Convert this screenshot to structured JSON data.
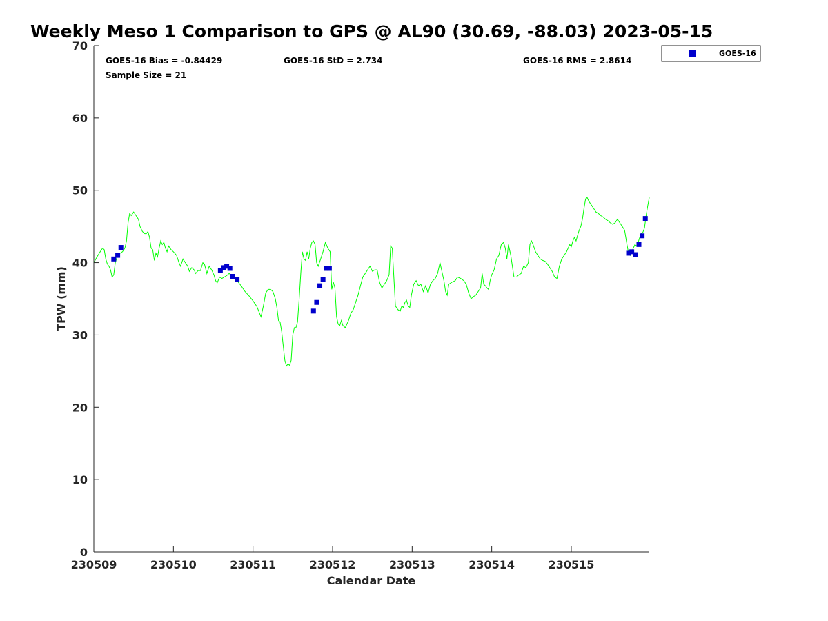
{
  "chart_data": {
    "type": "scatter",
    "title": "Weekly Meso 1 Comparison to GPS @ AL90 (30.69, -88.03) 2023-05-15",
    "xlabel": "Calendar Date",
    "ylabel": "TPW (mm)",
    "ylim": [
      0,
      70
    ],
    "xlim": [
      0,
      6.98
    ],
    "x_unit_note": "days after 230509 00Z",
    "y_ticks": [
      0,
      10,
      20,
      30,
      40,
      50,
      60,
      70
    ],
    "x_ticks": [
      {
        "value": 0,
        "label": "230509"
      },
      {
        "value": 1,
        "label": "230510"
      },
      {
        "value": 2,
        "label": "230511"
      },
      {
        "value": 3,
        "label": "230512"
      },
      {
        "value": 4,
        "label": "230513"
      },
      {
        "value": 5,
        "label": "230514"
      },
      {
        "value": 6,
        "label": "230515"
      }
    ],
    "grid": false,
    "legend_position": "top-right-outside",
    "stats": {
      "bias": "GOES-16 Bias = -0.84429",
      "std": "GOES-16 StD = 2.734",
      "rms": "GOES-16 RMS = 2.8614",
      "sample": "Sample Size = 21"
    },
    "series": [
      {
        "name": "GPS",
        "kind": "line",
        "color": "#00ff00",
        "points": [
          [
            0.0,
            40.0
          ],
          [
            0.04,
            40.8
          ],
          [
            0.08,
            41.5
          ],
          [
            0.11,
            42.0
          ],
          [
            0.13,
            41.8
          ],
          [
            0.15,
            40.5
          ],
          [
            0.17,
            39.8
          ],
          [
            0.19,
            39.5
          ],
          [
            0.21,
            39.0
          ],
          [
            0.23,
            38.0
          ],
          [
            0.25,
            38.3
          ],
          [
            0.27,
            40.0
          ],
          [
            0.3,
            41.0
          ],
          [
            0.33,
            41.3
          ],
          [
            0.36,
            41.5
          ],
          [
            0.39,
            42.0
          ],
          [
            0.41,
            43.0
          ],
          [
            0.43,
            45.5
          ],
          [
            0.45,
            46.8
          ],
          [
            0.47,
            46.5
          ],
          [
            0.5,
            47.0
          ],
          [
            0.53,
            46.5
          ],
          [
            0.56,
            46.0
          ],
          [
            0.58,
            45.0
          ],
          [
            0.61,
            44.3
          ],
          [
            0.64,
            44.0
          ],
          [
            0.66,
            44.0
          ],
          [
            0.68,
            44.3
          ],
          [
            0.7,
            43.5
          ],
          [
            0.72,
            42.0
          ],
          [
            0.74,
            41.8
          ],
          [
            0.76,
            40.3
          ],
          [
            0.78,
            41.3
          ],
          [
            0.8,
            40.8
          ],
          [
            0.82,
            42.0
          ],
          [
            0.84,
            43.0
          ],
          [
            0.86,
            42.5
          ],
          [
            0.88,
            42.8
          ],
          [
            0.9,
            42.0
          ],
          [
            0.92,
            41.5
          ],
          [
            0.94,
            42.3
          ],
          [
            0.97,
            41.8
          ],
          [
            1.0,
            41.5
          ],
          [
            1.04,
            41.0
          ],
          [
            1.07,
            40.0
          ],
          [
            1.09,
            39.5
          ],
          [
            1.12,
            40.5
          ],
          [
            1.15,
            40.0
          ],
          [
            1.18,
            39.5
          ],
          [
            1.2,
            38.8
          ],
          [
            1.23,
            39.3
          ],
          [
            1.26,
            39.0
          ],
          [
            1.28,
            38.5
          ],
          [
            1.31,
            38.9
          ],
          [
            1.34,
            38.9
          ],
          [
            1.37,
            40.0
          ],
          [
            1.39,
            39.8
          ],
          [
            1.42,
            38.5
          ],
          [
            1.45,
            39.5
          ],
          [
            1.48,
            39.0
          ],
          [
            1.51,
            38.3
          ],
          [
            1.53,
            37.5
          ],
          [
            1.55,
            37.2
          ],
          [
            1.58,
            38.0
          ],
          [
            1.61,
            37.8
          ],
          [
            1.64,
            38.0
          ],
          [
            1.67,
            38.2
          ],
          [
            1.7,
            38.5
          ],
          [
            1.75,
            38.0
          ],
          [
            1.8,
            37.5
          ],
          [
            1.85,
            36.8
          ],
          [
            1.9,
            36.0
          ],
          [
            1.95,
            35.4
          ],
          [
            2.0,
            34.7
          ],
          [
            2.05,
            33.9
          ],
          [
            2.1,
            32.5
          ],
          [
            2.13,
            34.0
          ],
          [
            2.16,
            35.8
          ],
          [
            2.19,
            36.3
          ],
          [
            2.22,
            36.3
          ],
          [
            2.25,
            36.0
          ],
          [
            2.28,
            35.0
          ],
          [
            2.3,
            33.8
          ],
          [
            2.32,
            32.0
          ],
          [
            2.34,
            31.8
          ],
          [
            2.36,
            30.5
          ],
          [
            2.38,
            28.5
          ],
          [
            2.4,
            26.5
          ],
          [
            2.42,
            25.7
          ],
          [
            2.44,
            26.0
          ],
          [
            2.46,
            25.8
          ],
          [
            2.48,
            26.5
          ],
          [
            2.5,
            30.0
          ],
          [
            2.52,
            31.0
          ],
          [
            2.54,
            31.0
          ],
          [
            2.56,
            31.8
          ],
          [
            2.58,
            35.0
          ],
          [
            2.6,
            38.5
          ],
          [
            2.62,
            41.5
          ],
          [
            2.64,
            40.5
          ],
          [
            2.66,
            40.3
          ],
          [
            2.68,
            41.5
          ],
          [
            2.7,
            40.5
          ],
          [
            2.72,
            42.0
          ],
          [
            2.74,
            42.8
          ],
          [
            2.76,
            43.0
          ],
          [
            2.78,
            42.5
          ],
          [
            2.8,
            40.0
          ],
          [
            2.82,
            39.5
          ],
          [
            2.85,
            40.5
          ],
          [
            2.88,
            41.5
          ],
          [
            2.91,
            42.8
          ],
          [
            2.94,
            42.0
          ],
          [
            2.97,
            41.5
          ],
          [
            2.99,
            36.3
          ],
          [
            3.01,
            37.3
          ],
          [
            3.03,
            36.5
          ],
          [
            3.05,
            32.5
          ],
          [
            3.07,
            31.5
          ],
          [
            3.09,
            31.3
          ],
          [
            3.11,
            32.0
          ],
          [
            3.13,
            31.3
          ],
          [
            3.16,
            31.0
          ],
          [
            3.2,
            32.0
          ],
          [
            3.23,
            33.0
          ],
          [
            3.26,
            33.5
          ],
          [
            3.29,
            34.5
          ],
          [
            3.32,
            35.5
          ],
          [
            3.35,
            36.8
          ],
          [
            3.38,
            38.0
          ],
          [
            3.41,
            38.5
          ],
          [
            3.44,
            39.0
          ],
          [
            3.47,
            39.5
          ],
          [
            3.5,
            38.8
          ],
          [
            3.53,
            39.0
          ],
          [
            3.56,
            39.0
          ],
          [
            3.59,
            37.3
          ],
          [
            3.62,
            36.5
          ],
          [
            3.65,
            37.0
          ],
          [
            3.68,
            37.5
          ],
          [
            3.71,
            38.3
          ],
          [
            3.73,
            42.3
          ],
          [
            3.75,
            42.0
          ],
          [
            3.77,
            38.0
          ],
          [
            3.79,
            34.0
          ],
          [
            3.82,
            33.5
          ],
          [
            3.85,
            33.3
          ],
          [
            3.87,
            34.0
          ],
          [
            3.89,
            33.8
          ],
          [
            3.91,
            34.5
          ],
          [
            3.93,
            34.8
          ],
          [
            3.95,
            34.0
          ],
          [
            3.97,
            33.8
          ],
          [
            3.99,
            35.5
          ],
          [
            4.02,
            37.0
          ],
          [
            4.05,
            37.5
          ],
          [
            4.08,
            36.8
          ],
          [
            4.11,
            37.0
          ],
          [
            4.14,
            36.0
          ],
          [
            4.17,
            36.8
          ],
          [
            4.2,
            35.8
          ],
          [
            4.23,
            37.0
          ],
          [
            4.26,
            37.5
          ],
          [
            4.29,
            37.8
          ],
          [
            4.32,
            38.5
          ],
          [
            4.35,
            40.0
          ],
          [
            4.38,
            38.5
          ],
          [
            4.4,
            37.5
          ],
          [
            4.42,
            36.0
          ],
          [
            4.44,
            35.5
          ],
          [
            4.46,
            37.0
          ],
          [
            4.5,
            37.3
          ],
          [
            4.54,
            37.5
          ],
          [
            4.57,
            38.0
          ],
          [
            4.61,
            37.8
          ],
          [
            4.65,
            37.5
          ],
          [
            4.68,
            37.0
          ],
          [
            4.71,
            35.8
          ],
          [
            4.74,
            35.0
          ],
          [
            4.77,
            35.3
          ],
          [
            4.8,
            35.5
          ],
          [
            4.83,
            36.0
          ],
          [
            4.86,
            36.5
          ],
          [
            4.88,
            38.5
          ],
          [
            4.9,
            37.0
          ],
          [
            4.92,
            36.8
          ],
          [
            4.94,
            36.5
          ],
          [
            4.96,
            36.3
          ],
          [
            4.98,
            37.5
          ],
          [
            5.0,
            38.3
          ],
          [
            5.03,
            39.0
          ],
          [
            5.06,
            40.5
          ],
          [
            5.09,
            41.0
          ],
          [
            5.12,
            42.5
          ],
          [
            5.15,
            42.8
          ],
          [
            5.17,
            42.0
          ],
          [
            5.19,
            40.5
          ],
          [
            5.21,
            42.5
          ],
          [
            5.24,
            41.0
          ],
          [
            5.26,
            39.5
          ],
          [
            5.28,
            38.0
          ],
          [
            5.31,
            38.0
          ],
          [
            5.34,
            38.3
          ],
          [
            5.37,
            38.5
          ],
          [
            5.4,
            39.5
          ],
          [
            5.43,
            39.3
          ],
          [
            5.46,
            40.0
          ],
          [
            5.48,
            42.5
          ],
          [
            5.5,
            43.0
          ],
          [
            5.52,
            42.5
          ],
          [
            5.55,
            41.5
          ],
          [
            5.58,
            41.0
          ],
          [
            5.61,
            40.5
          ],
          [
            5.64,
            40.3
          ],
          [
            5.67,
            40.2
          ],
          [
            5.7,
            39.8
          ],
          [
            5.73,
            39.3
          ],
          [
            5.76,
            38.8
          ],
          [
            5.79,
            38.0
          ],
          [
            5.82,
            37.8
          ],
          [
            5.85,
            39.5
          ],
          [
            5.88,
            40.5
          ],
          [
            5.91,
            41.0
          ],
          [
            5.94,
            41.5
          ],
          [
            5.96,
            42.0
          ],
          [
            5.98,
            42.5
          ],
          [
            6.0,
            42.2
          ],
          [
            6.02,
            43.0
          ],
          [
            6.04,
            43.5
          ],
          [
            6.06,
            43.0
          ],
          [
            6.08,
            43.8
          ],
          [
            6.1,
            44.5
          ],
          [
            6.12,
            45.0
          ],
          [
            6.14,
            46.0
          ],
          [
            6.16,
            47.5
          ],
          [
            6.18,
            48.8
          ],
          [
            6.2,
            49.0
          ],
          [
            6.22,
            48.5
          ],
          [
            6.25,
            48.0
          ],
          [
            6.28,
            47.5
          ],
          [
            6.31,
            47.0
          ],
          [
            6.34,
            46.8
          ],
          [
            6.37,
            46.5
          ],
          [
            6.4,
            46.3
          ],
          [
            6.43,
            46.0
          ],
          [
            6.46,
            45.8
          ],
          [
            6.49,
            45.5
          ],
          [
            6.52,
            45.3
          ],
          [
            6.55,
            45.5
          ],
          [
            6.58,
            46.0
          ],
          [
            6.61,
            45.5
          ],
          [
            6.64,
            45.0
          ],
          [
            6.67,
            44.5
          ],
          [
            6.7,
            42.5
          ],
          [
            6.72,
            41.3
          ],
          [
            6.74,
            41.0
          ],
          [
            6.76,
            41.5
          ],
          [
            6.78,
            42.0
          ],
          [
            6.8,
            42.5
          ],
          [
            6.82,
            42.3
          ],
          [
            6.84,
            42.8
          ],
          [
            6.86,
            43.5
          ],
          [
            6.88,
            44.0
          ],
          [
            6.9,
            44.2
          ],
          [
            6.92,
            44.8
          ],
          [
            6.94,
            46.5
          ],
          [
            6.96,
            47.8
          ],
          [
            6.98,
            49.0
          ]
        ]
      },
      {
        "name": "GOES-16",
        "kind": "scatter",
        "color": "#0000cc",
        "points": [
          [
            0.25,
            40.5
          ],
          [
            0.3,
            41.0
          ],
          [
            0.34,
            42.1
          ],
          [
            1.59,
            38.9
          ],
          [
            1.63,
            39.3
          ],
          [
            1.67,
            39.5
          ],
          [
            1.71,
            39.2
          ],
          [
            1.74,
            38.1
          ],
          [
            1.8,
            37.7
          ],
          [
            2.76,
            33.3
          ],
          [
            2.8,
            34.5
          ],
          [
            2.84,
            36.8
          ],
          [
            2.88,
            37.7
          ],
          [
            2.92,
            39.2
          ],
          [
            2.96,
            39.2
          ],
          [
            6.72,
            41.3
          ],
          [
            6.76,
            41.5
          ],
          [
            6.81,
            41.1
          ],
          [
            6.85,
            42.5
          ],
          [
            6.89,
            43.7
          ],
          [
            6.93,
            46.1
          ]
        ]
      }
    ]
  }
}
